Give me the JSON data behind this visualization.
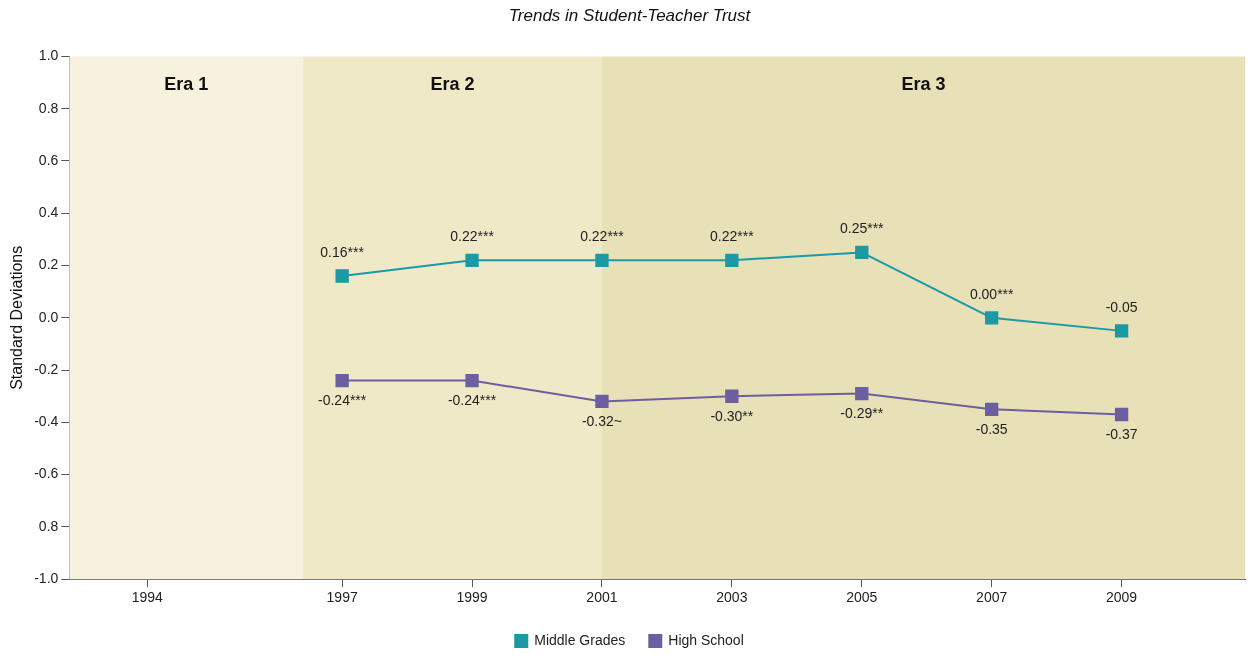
{
  "chart_data": {
    "type": "line",
    "title": "Trends in Student-Teacher Trust",
    "ylabel": "Standard Deviations",
    "x": [
      1997,
      1999,
      2001,
      2003,
      2005,
      2007,
      2009
    ],
    "series": [
      {
        "name": "Middle Grades",
        "color": "#1b9aa6",
        "values": [
          0.16,
          0.22,
          0.22,
          0.22,
          0.25,
          0.0,
          -0.05
        ],
        "value_labels": [
          "0.16***",
          "0.22***",
          "0.22***",
          "0.22***",
          "0.25***",
          "0.00***",
          "-0.05"
        ]
      },
      {
        "name": "High School",
        "color": "#6b5fa1",
        "values": [
          -0.24,
          -0.24,
          -0.32,
          -0.3,
          -0.29,
          -0.35,
          -0.37
        ],
        "value_labels": [
          "-0.24***",
          "-0.24***",
          "-0.32~",
          "-0.30**",
          "-0.29**",
          "-0.35",
          "-0.37"
        ]
      }
    ],
    "xlim": [
      1992.8,
      2010.9
    ],
    "xticks": [
      1994,
      1997,
      1999,
      2001,
      2003,
      2005,
      2007,
      2009
    ],
    "ylim": [
      -1.0,
      1.0
    ],
    "yticks": [
      {
        "value": -1.0,
        "label": "-1.0"
      },
      {
        "value": -0.8,
        "label": "0.8"
      },
      {
        "value": -0.6,
        "label": "-0.6"
      },
      {
        "value": -0.4,
        "label": "-0.4"
      },
      {
        "value": -0.2,
        "label": "-0.2"
      },
      {
        "value": 0,
        "label": "0.0"
      },
      {
        "value": 0.2,
        "label": "0.2"
      },
      {
        "value": 0.4,
        "label": "0.4"
      },
      {
        "value": 0.6,
        "label": "0.6"
      },
      {
        "value": 0.8,
        "label": "0.8"
      },
      {
        "value": 1.0,
        "label": "1.0"
      }
    ],
    "bands": [
      {
        "axis": "x",
        "from": 1992.8,
        "to": 1996.4,
        "label": "Era 1",
        "color": "#f6f2dd"
      },
      {
        "axis": "x",
        "from": 1996.4,
        "to": 2001,
        "label": "Era 2",
        "color": "#efe9c8"
      },
      {
        "axis": "x",
        "from": 2001,
        "to": 2010.9,
        "label": "Era 3",
        "color": "#e8e0b6"
      }
    ],
    "grid": false,
    "legend": "bottom",
    "marker": "square",
    "line_style": "solid"
  }
}
